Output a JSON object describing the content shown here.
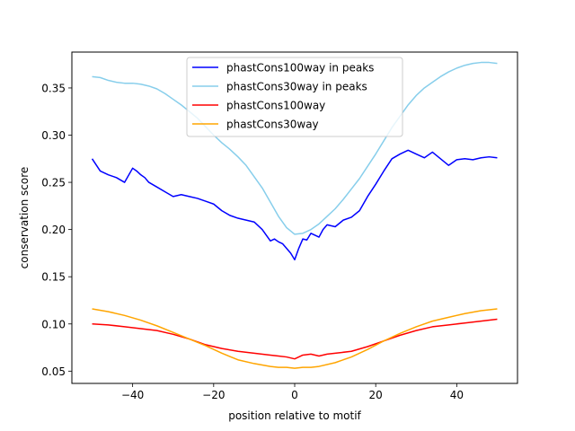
{
  "chart_data": {
    "type": "line",
    "title": "",
    "xlabel": "position relative to motif",
    "ylabel": "conservation score",
    "xlim": [
      -55,
      55
    ],
    "ylim": [
      0.037,
      0.388
    ],
    "xticks": [
      -40,
      -20,
      0,
      20,
      40
    ],
    "yticks": [
      0.05,
      0.1,
      0.15,
      0.2,
      0.25,
      0.3,
      0.35
    ],
    "ytick_labels": [
      "0.05",
      "0.10",
      "0.15",
      "0.20",
      "0.25",
      "0.30",
      "0.35"
    ],
    "grid": false,
    "legend_position": "upper center",
    "series": [
      {
        "name": "phastCons100way in peaks",
        "color": "#0000ff",
        "x": [
          -50,
          -48,
          -46,
          -44,
          -42,
          -40,
          -39,
          -38,
          -37,
          -36,
          -34,
          -32,
          -30,
          -28,
          -26,
          -24,
          -22,
          -20,
          -18,
          -16,
          -14,
          -12,
          -10,
          -8,
          -6,
          -5,
          -4,
          -3,
          -2,
          -1,
          0,
          1,
          2,
          3,
          4,
          5,
          6,
          7,
          8,
          10,
          12,
          14,
          16,
          18,
          20,
          22,
          24,
          26,
          28,
          30,
          32,
          34,
          36,
          38,
          40,
          42,
          44,
          46,
          48,
          50
        ],
        "y": [
          0.275,
          0.262,
          0.258,
          0.255,
          0.25,
          0.265,
          0.262,
          0.258,
          0.255,
          0.25,
          0.245,
          0.24,
          0.235,
          0.237,
          0.235,
          0.233,
          0.23,
          0.227,
          0.22,
          0.215,
          0.212,
          0.21,
          0.208,
          0.2,
          0.188,
          0.19,
          0.187,
          0.185,
          0.18,
          0.175,
          0.168,
          0.18,
          0.19,
          0.189,
          0.196,
          0.194,
          0.192,
          0.2,
          0.205,
          0.203,
          0.21,
          0.213,
          0.22,
          0.235,
          0.248,
          0.262,
          0.275,
          0.28,
          0.284,
          0.28,
          0.276,
          0.282,
          0.275,
          0.268,
          0.274,
          0.275,
          0.274,
          0.276,
          0.277,
          0.276
        ]
      },
      {
        "name": "phastCons30way in peaks",
        "color": "#87ceeb",
        "x": [
          -50,
          -48,
          -46,
          -44,
          -42,
          -40,
          -38,
          -36,
          -34,
          -32,
          -30,
          -28,
          -26,
          -24,
          -22,
          -20,
          -18,
          -16,
          -14,
          -12,
          -10,
          -8,
          -6,
          -4,
          -2,
          0,
          2,
          4,
          6,
          8,
          10,
          12,
          14,
          16,
          18,
          20,
          22,
          24,
          26,
          28,
          30,
          32,
          34,
          36,
          38,
          40,
          42,
          44,
          46,
          48,
          50
        ],
        "y": [
          0.362,
          0.361,
          0.358,
          0.356,
          0.355,
          0.355,
          0.354,
          0.352,
          0.349,
          0.344,
          0.338,
          0.332,
          0.325,
          0.318,
          0.309,
          0.3,
          0.292,
          0.285,
          0.277,
          0.268,
          0.256,
          0.244,
          0.229,
          0.214,
          0.202,
          0.195,
          0.196,
          0.2,
          0.206,
          0.214,
          0.222,
          0.232,
          0.243,
          0.254,
          0.267,
          0.28,
          0.294,
          0.308,
          0.32,
          0.332,
          0.342,
          0.35,
          0.356,
          0.362,
          0.367,
          0.371,
          0.374,
          0.376,
          0.377,
          0.377,
          0.376
        ]
      },
      {
        "name": "phastCons100way",
        "color": "#ff0000",
        "x": [
          -50,
          -46,
          -42,
          -38,
          -34,
          -30,
          -26,
          -22,
          -18,
          -14,
          -10,
          -6,
          -4,
          -2,
          0,
          2,
          4,
          6,
          8,
          10,
          14,
          18,
          22,
          26,
          30,
          34,
          38,
          42,
          46,
          50
        ],
        "y": [
          0.1,
          0.099,
          0.097,
          0.095,
          0.093,
          0.089,
          0.084,
          0.078,
          0.074,
          0.071,
          0.069,
          0.067,
          0.066,
          0.065,
          0.063,
          0.067,
          0.068,
          0.066,
          0.068,
          0.069,
          0.071,
          0.076,
          0.082,
          0.088,
          0.093,
          0.097,
          0.099,
          0.101,
          0.103,
          0.105
        ]
      },
      {
        "name": "phastCons30way",
        "color": "#ffa500",
        "x": [
          -50,
          -46,
          -42,
          -38,
          -34,
          -30,
          -26,
          -22,
          -18,
          -14,
          -10,
          -6,
          -4,
          -2,
          0,
          2,
          4,
          6,
          10,
          14,
          18,
          22,
          26,
          30,
          34,
          38,
          42,
          46,
          50
        ],
        "y": [
          0.116,
          0.113,
          0.109,
          0.104,
          0.098,
          0.091,
          0.084,
          0.077,
          0.069,
          0.062,
          0.058,
          0.055,
          0.054,
          0.054,
          0.053,
          0.054,
          0.054,
          0.055,
          0.059,
          0.065,
          0.073,
          0.082,
          0.09,
          0.097,
          0.103,
          0.107,
          0.111,
          0.114,
          0.116
        ]
      }
    ]
  }
}
